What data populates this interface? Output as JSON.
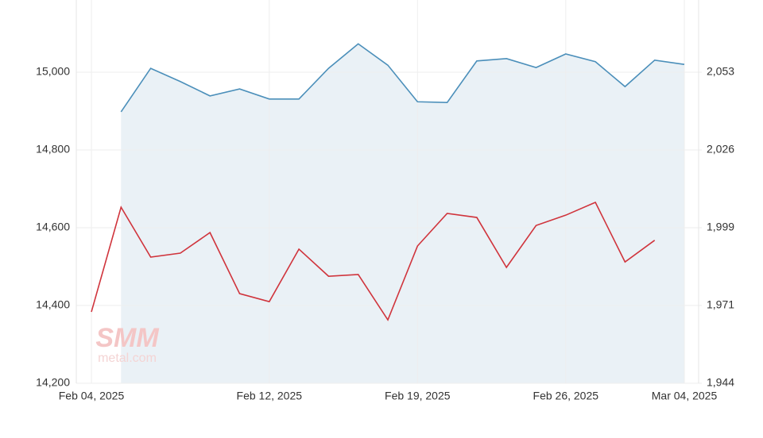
{
  "chart_data": {
    "type": "line",
    "categories": [
      "Feb 04, 2025",
      null,
      null,
      null,
      null,
      null,
      "Feb 12, 2025",
      null,
      null,
      null,
      null,
      "Feb 19, 2025",
      null,
      null,
      null,
      null,
      "Feb 26, 2025",
      null,
      null,
      null,
      "Mar 04, 2025"
    ],
    "series": [
      {
        "color": "#4b8fba",
        "fill": "#eaf1f6",
        "axis": "y",
        "values": [
          null,
          14898,
          15010,
          14976,
          14939,
          14957,
          14931,
          14931,
          15010,
          15073,
          15018,
          14924,
          14922,
          15029,
          15035,
          15012,
          15047,
          15027,
          14963,
          15031,
          15020
        ]
      },
      {
        "color": "#d0343c",
        "axis": "y2",
        "values": [
          1969,
          2005.7,
          1988.2,
          1989.6,
          1996.8,
          1975.4,
          1972.6,
          1991.0,
          1981.5,
          1982.1,
          1966.2,
          1992.1,
          2003.5,
          2002.1,
          1984.6,
          1999.3,
          2002.9,
          2007.4,
          1986.5,
          1994.1,
          null
        ]
      }
    ],
    "ylim": [
      14200,
      15200
    ],
    "yticks": [
      {
        "value": 14200,
        "label": "14,200"
      },
      {
        "value": 14400,
        "label": "14,400"
      },
      {
        "value": 14600,
        "label": "14,600"
      },
      {
        "value": 14800,
        "label": "14,800"
      },
      {
        "value": 15000,
        "label": "15,000"
      }
    ],
    "y2lim": [
      1944,
      2080.25
    ],
    "y2ticks": [
      {
        "value": 1944,
        "label": "1,944"
      },
      {
        "value": 1971.25,
        "label": "1,971"
      },
      {
        "value": 1998.5,
        "label": "1,999"
      },
      {
        "value": 2025.75,
        "label": "2,026"
      },
      {
        "value": 2053,
        "label": "2,053"
      }
    ],
    "grid": true,
    "watermark": [
      "SMM",
      "metal.com"
    ]
  }
}
